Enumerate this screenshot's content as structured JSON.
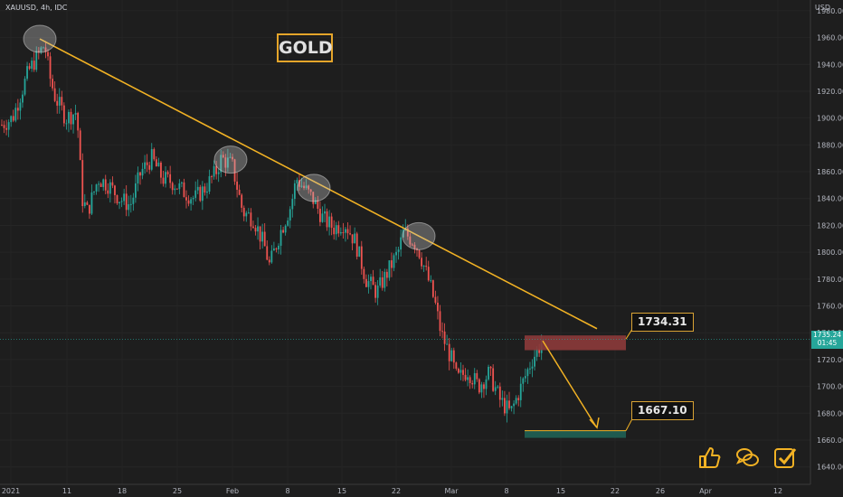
{
  "header": {
    "symbol": "XAUUSD, 4h, IDC",
    "currency": "USD"
  },
  "title_box": "GOLD",
  "last_price": {
    "value": "1735.24",
    "countdown": "01:45"
  },
  "annotations": {
    "resistance_label": "1734.31",
    "target_label": "1667.10"
  },
  "colors": {
    "background": "#1e1e1e",
    "up": "#26a69a",
    "down": "#ef5350",
    "annotation": "#f2b224",
    "resistance_zone": "#8c3a3a",
    "target_zone": "#1f5a4f"
  },
  "icons": [
    "thumbs-up-icon",
    "comments-icon",
    "checkbox-icon"
  ],
  "chart_data": {
    "type": "candlestick",
    "instrument": "XAUUSD",
    "timeframe": "4h",
    "y_axis": {
      "unit": "USD",
      "ticks": [
        1640,
        1660,
        1680,
        1700,
        1720,
        1740,
        1760,
        1780,
        1800,
        1820,
        1840,
        1860,
        1880,
        1900,
        1920,
        1940,
        1960,
        1980
      ],
      "range": [
        1627,
        1988
      ]
    },
    "x_axis": {
      "ticks": [
        "2021",
        "11",
        "18",
        "25",
        "Feb",
        "8",
        "15",
        "22",
        "Mar",
        "8",
        "15",
        "22",
        "26",
        "Apr",
        "12"
      ]
    },
    "price_path": [
      [
        0,
        1895
      ],
      [
        2,
        1900
      ],
      [
        5,
        1935
      ],
      [
        8,
        1955
      ],
      [
        9,
        1930
      ],
      [
        10,
        1915
      ],
      [
        12,
        1900
      ],
      [
        14,
        1905
      ],
      [
        15,
        1840
      ],
      [
        16,
        1830
      ],
      [
        18,
        1855
      ],
      [
        20,
        1850
      ],
      [
        22,
        1840
      ],
      [
        24,
        1835
      ],
      [
        26,
        1860
      ],
      [
        28,
        1870
      ],
      [
        30,
        1855
      ],
      [
        32,
        1852
      ],
      [
        34,
        1845
      ],
      [
        36,
        1840
      ],
      [
        38,
        1848
      ],
      [
        40,
        1860
      ],
      [
        41,
        1870
      ],
      [
        43,
        1865
      ],
      [
        45,
        1830
      ],
      [
        47,
        1825
      ],
      [
        49,
        1805
      ],
      [
        50,
        1790
      ],
      [
        52,
        1815
      ],
      [
        54,
        1835
      ],
      [
        55,
        1855
      ],
      [
        57,
        1845
      ],
      [
        58,
        1840
      ],
      [
        60,
        1825
      ],
      [
        62,
        1818
      ],
      [
        64,
        1822
      ],
      [
        66,
        1808
      ],
      [
        68,
        1780
      ],
      [
        70,
        1770
      ],
      [
        72,
        1785
      ],
      [
        74,
        1800
      ],
      [
        75,
        1815
      ],
      [
        77,
        1808
      ],
      [
        78,
        1800
      ],
      [
        80,
        1775
      ],
      [
        81,
        1760
      ],
      [
        82,
        1740
      ],
      [
        84,
        1720
      ],
      [
        85,
        1705
      ],
      [
        87,
        1712
      ],
      [
        89,
        1700
      ],
      [
        91,
        1710
      ],
      [
        93,
        1690
      ],
      [
        95,
        1680
      ],
      [
        97,
        1700
      ],
      [
        99,
        1720
      ],
      [
        101,
        1734
      ]
    ],
    "trendline": {
      "start": {
        "x": "2021-01-06",
        "y": 1959
      },
      "end": {
        "x": "2021-03-19",
        "y": 1743
      },
      "touch_points": [
        1959,
        1869,
        1848,
        1812
      ]
    },
    "resistance_zone": {
      "low": 1727,
      "high": 1738,
      "label": "1734.31"
    },
    "target_zone": {
      "low": 1663,
      "high": 1667,
      "label": "1667.10"
    },
    "projection": {
      "from": 1734,
      "to": 1670
    },
    "last_price_line": 1735.24
  }
}
